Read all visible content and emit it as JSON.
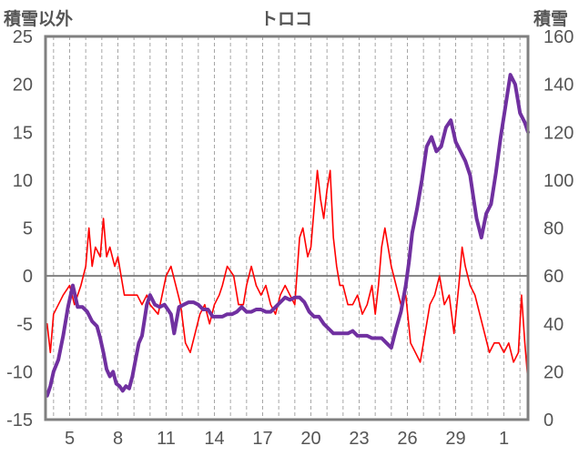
{
  "chart_data": {
    "type": "line",
    "title": "トロコ",
    "ylabel_left": "積雪以外",
    "ylabel_right": "積雪",
    "ylim_left": [
      -15,
      25
    ],
    "ylim_right": [
      0,
      160
    ],
    "y_ticks_left": [
      "25",
      "20",
      "15",
      "10",
      "5",
      "0",
      "-5",
      "-10",
      "-15"
    ],
    "y_ticks_right": [
      "160",
      "140",
      "120",
      "100",
      "80",
      "60",
      "40",
      "20",
      "0"
    ],
    "x_tick_labels": [
      "5",
      "8",
      "11",
      "14",
      "17",
      "20",
      "23",
      "26",
      "29",
      "1"
    ],
    "x_tick_days": [
      5,
      8,
      11,
      14,
      17,
      20,
      23,
      26,
      29,
      32
    ],
    "xlim_days": [
      3.5,
      33.5
    ],
    "grid": "vertical-dashed-daily",
    "series": [
      {
        "axis": "left",
        "color": "#ff0000",
        "x": [
          3.6,
          3.8,
          4.0,
          4.3,
          4.6,
          5.0,
          5.3,
          5.7,
          6.0,
          6.2,
          6.4,
          6.6,
          6.9,
          7.1,
          7.3,
          7.5,
          7.8,
          8.0,
          8.2,
          8.4,
          8.6,
          8.9,
          9.2,
          9.5,
          9.8,
          10.0,
          10.5,
          11.0,
          11.3,
          11.6,
          11.9,
          12.2,
          12.5,
          12.8,
          13.1,
          13.4,
          13.7,
          14.0,
          14.3,
          14.5,
          14.8,
          15.2,
          15.5,
          15.8,
          16.0,
          16.3,
          16.6,
          16.9,
          17.2,
          17.5,
          17.8,
          18.1,
          18.4,
          18.7,
          19.0,
          19.3,
          19.5,
          19.8,
          20.0,
          20.2,
          20.4,
          20.6,
          20.8,
          21.0,
          21.2,
          21.4,
          21.6,
          21.8,
          22.0,
          22.3,
          22.6,
          22.9,
          23.2,
          23.5,
          23.8,
          24.0,
          24.2,
          24.4,
          24.6,
          24.8,
          25.0,
          25.3,
          25.6,
          25.9,
          26.2,
          26.5,
          26.8,
          27.1,
          27.4,
          27.7,
          28.0,
          28.3,
          28.6,
          28.9,
          29.2,
          29.4,
          29.6,
          29.9,
          30.2,
          30.5,
          30.8,
          31.1,
          31.4,
          31.7,
          32.0,
          32.3,
          32.6,
          32.9,
          33.1,
          33.3,
          33.5
        ],
        "values": [
          -5,
          -8,
          -4,
          -3,
          -2,
          -1,
          -3,
          -1,
          1,
          5,
          1,
          3,
          2,
          6,
          2,
          3,
          1,
          2,
          0,
          -2,
          -2,
          -2,
          -2,
          -3,
          -2,
          -3,
          -4,
          0,
          1,
          -1,
          -3,
          -7,
          -8,
          -6,
          -4,
          -3,
          -5,
          -3,
          -2,
          -1,
          1,
          0,
          -3,
          -3,
          -1,
          1,
          -1,
          -2,
          -1,
          -3,
          -4,
          -2,
          -1,
          -2,
          -3,
          4,
          5,
          2,
          3,
          7,
          11,
          8,
          6,
          9,
          11,
          4,
          1,
          -1,
          -1,
          -3,
          -3,
          -2,
          -4,
          -3,
          -1,
          -4,
          -1,
          3,
          5,
          3,
          1,
          -1,
          -3,
          -2,
          -7,
          -8,
          -9,
          -6,
          -3,
          -2,
          0,
          -3,
          -2,
          -6,
          -1,
          3,
          1,
          -1,
          -2,
          -4,
          -6,
          -8,
          -7,
          -7,
          -8,
          -7,
          -9,
          -8,
          -2,
          -7,
          -11
        ]
      },
      {
        "axis": "right",
        "color": "#7030a0",
        "x": [
          3.6,
          3.8,
          4.0,
          4.3,
          4.6,
          4.9,
          5.2,
          5.5,
          5.8,
          6.1,
          6.4,
          6.7,
          6.9,
          7.1,
          7.3,
          7.5,
          7.7,
          7.9,
          8.1,
          8.3,
          8.5,
          8.7,
          8.9,
          9.1,
          9.3,
          9.5,
          9.8,
          10.0,
          10.3,
          10.6,
          10.9,
          11.1,
          11.3,
          11.5,
          11.8,
          12.1,
          12.4,
          12.7,
          13.0,
          13.3,
          13.6,
          13.9,
          14.2,
          14.5,
          14.8,
          15.1,
          15.4,
          15.7,
          16.0,
          16.3,
          16.6,
          16.9,
          17.2,
          17.5,
          17.8,
          18.1,
          18.4,
          18.7,
          19.0,
          19.3,
          19.6,
          19.9,
          20.2,
          20.5,
          20.8,
          21.1,
          21.4,
          21.7,
          22.0,
          22.3,
          22.6,
          22.9,
          23.2,
          23.5,
          23.8,
          24.1,
          24.4,
          24.7,
          25.0,
          25.3,
          25.6,
          25.9,
          26.1,
          26.3,
          26.6,
          26.9,
          27.2,
          27.5,
          27.8,
          28.1,
          28.4,
          28.7,
          29.0,
          29.3,
          29.6,
          29.9,
          30.1,
          30.3,
          30.6,
          30.9,
          31.2,
          31.5,
          31.8,
          32.1,
          32.4,
          32.7,
          33.0,
          33.3,
          33.5
        ],
        "values": [
          10,
          14,
          20,
          25,
          35,
          47,
          56,
          47,
          47,
          45,
          41,
          39,
          34,
          28,
          21,
          18,
          20,
          15,
          14,
          12,
          14,
          13,
          18,
          25,
          32,
          35,
          48,
          52,
          48,
          47,
          48,
          46,
          44,
          36,
          47,
          48,
          49,
          49,
          48,
          46,
          46,
          43,
          43,
          43,
          44,
          44,
          45,
          47,
          45,
          45,
          46,
          46,
          45,
          45,
          47,
          49,
          51,
          50,
          51,
          51,
          49,
          45,
          43,
          43,
          40,
          38,
          36,
          36,
          36,
          36,
          37,
          35,
          35,
          35,
          34,
          34,
          34,
          32,
          30,
          38,
          45,
          56,
          66,
          78,
          88,
          100,
          114,
          118,
          112,
          114,
          122,
          125,
          116,
          112,
          108,
          102,
          93,
          84,
          76,
          86,
          90,
          103,
          118,
          131,
          144,
          140,
          128,
          124,
          120
        ]
      }
    ]
  }
}
